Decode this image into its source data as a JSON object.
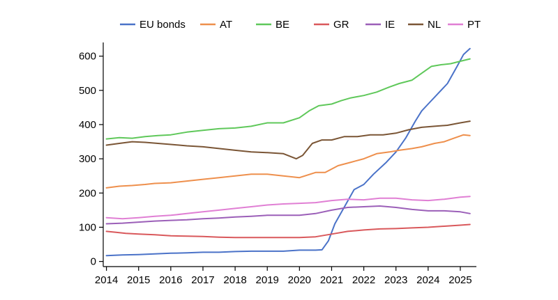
{
  "chart_data": {
    "type": "line",
    "title": "",
    "xlabel": "",
    "ylabel": "",
    "xlim": [
      2013.9,
      2025.5
    ],
    "ylim": [
      -15,
      640
    ],
    "x_ticks": [
      2014,
      2015,
      2016,
      2017,
      2018,
      2019,
      2020,
      2021,
      2022,
      2023,
      2024,
      2025
    ],
    "x_tick_labels": [
      "2014",
      "2015",
      "2016",
      "2017",
      "2018",
      "2019",
      "2020",
      "2021",
      "2022",
      "2023",
      "2024",
      "2025"
    ],
    "y_ticks": [
      0,
      100,
      200,
      300,
      400,
      500,
      600
    ],
    "y_tick_labels": [
      "0",
      "100",
      "200",
      "300",
      "400",
      "500",
      "600"
    ],
    "grid": false,
    "legend_position": "top",
    "series": [
      {
        "name": "EU bonds",
        "color": "#4a72c8",
        "x": [
          2014,
          2014.5,
          2015,
          2015.5,
          2016,
          2016.5,
          2017,
          2017.5,
          2018,
          2018.5,
          2019,
          2019.5,
          2020,
          2020.5,
          2020.7,
          2020.9,
          2021.1,
          2021.4,
          2021.7,
          2022,
          2022.3,
          2022.7,
          2023,
          2023.3,
          2023.6,
          2023.8,
          2024,
          2024.3,
          2024.6,
          2024.9,
          2025.1,
          2025.3
        ],
        "y": [
          17,
          19,
          20,
          22,
          24,
          25,
          27,
          27,
          29,
          30,
          30,
          30,
          33,
          33,
          34,
          60,
          110,
          160,
          210,
          225,
          255,
          290,
          320,
          360,
          410,
          440,
          460,
          490,
          520,
          570,
          605,
          622
        ]
      },
      {
        "name": "AT",
        "color": "#ee8f4c",
        "x": [
          2014,
          2014.4,
          2014.8,
          2015.2,
          2015.5,
          2016,
          2016.5,
          2017,
          2017.5,
          2018,
          2018.5,
          2019,
          2019.5,
          2020,
          2020.5,
          2020.8,
          2021.2,
          2021.6,
          2022,
          2022.4,
          2022.8,
          2023.1,
          2023.5,
          2023.8,
          2024.2,
          2024.5,
          2024.8,
          2025.1,
          2025.3
        ],
        "y": [
          215,
          220,
          222,
          225,
          228,
          230,
          235,
          240,
          245,
          250,
          255,
          255,
          250,
          245,
          260,
          260,
          280,
          290,
          300,
          315,
          320,
          325,
          330,
          335,
          345,
          350,
          360,
          370,
          368
        ]
      },
      {
        "name": "BE",
        "color": "#5fc85a",
        "x": [
          2014,
          2014.4,
          2014.8,
          2015.2,
          2015.6,
          2016,
          2016.5,
          2017,
          2017.5,
          2018,
          2018.5,
          2019,
          2019.5,
          2020,
          2020.3,
          2020.6,
          2021,
          2021.3,
          2021.6,
          2022,
          2022.4,
          2022.8,
          2023.1,
          2023.5,
          2023.8,
          2024.1,
          2024.4,
          2024.7,
          2025,
          2025.3
        ],
        "y": [
          358,
          362,
          360,
          365,
          368,
          370,
          378,
          383,
          388,
          390,
          395,
          405,
          405,
          420,
          440,
          455,
          460,
          470,
          478,
          485,
          495,
          510,
          520,
          530,
          550,
          570,
          575,
          578,
          585,
          592
        ]
      },
      {
        "name": "GR",
        "color": "#d9585b",
        "x": [
          2014,
          2014.3,
          2014.6,
          2015,
          2015.5,
          2016,
          2016.5,
          2017,
          2017.5,
          2018,
          2018.5,
          2019,
          2019.5,
          2020,
          2020.5,
          2021,
          2021.5,
          2022,
          2022.5,
          2023,
          2023.5,
          2024,
          2024.5,
          2025,
          2025.3
        ],
        "y": [
          88,
          85,
          82,
          80,
          78,
          75,
          74,
          73,
          71,
          70,
          70,
          70,
          70,
          70,
          72,
          80,
          88,
          92,
          95,
          96,
          98,
          100,
          103,
          106,
          108
        ]
      },
      {
        "name": "IE",
        "color": "#9b5fb8",
        "x": [
          2014,
          2014.5,
          2015,
          2015.5,
          2016,
          2016.5,
          2017,
          2017.5,
          2018,
          2018.5,
          2019,
          2019.5,
          2020,
          2020.5,
          2021,
          2021.5,
          2022,
          2022.5,
          2023,
          2023.5,
          2024,
          2024.5,
          2025,
          2025.3
        ],
        "y": [
          110,
          112,
          115,
          118,
          120,
          122,
          125,
          127,
          130,
          132,
          135,
          135,
          135,
          140,
          150,
          158,
          160,
          162,
          158,
          152,
          148,
          148,
          145,
          140
        ]
      },
      {
        "name": "NL",
        "color": "#7a5535",
        "x": [
          2014,
          2014.4,
          2014.8,
          2015.2,
          2015.6,
          2016,
          2016.5,
          2017,
          2017.5,
          2018,
          2018.5,
          2019,
          2019.5,
          2019.9,
          2020.1,
          2020.4,
          2020.7,
          2021,
          2021.4,
          2021.8,
          2022.2,
          2022.6,
          2023,
          2023.4,
          2023.8,
          2024.2,
          2024.6,
          2025,
          2025.3
        ],
        "y": [
          340,
          345,
          350,
          348,
          345,
          342,
          338,
          335,
          330,
          325,
          320,
          318,
          315,
          300,
          310,
          345,
          355,
          355,
          365,
          365,
          370,
          370,
          375,
          385,
          392,
          395,
          398,
          405,
          410
        ]
      },
      {
        "name": "PT",
        "color": "#e07fd4",
        "x": [
          2014,
          2014.5,
          2015,
          2015.5,
          2016,
          2016.5,
          2017,
          2017.5,
          2018,
          2018.5,
          2019,
          2019.5,
          2020,
          2020.5,
          2021,
          2021.5,
          2022,
          2022.5,
          2023,
          2023.5,
          2024,
          2024.5,
          2025,
          2025.3
        ],
        "y": [
          128,
          125,
          128,
          132,
          135,
          140,
          145,
          150,
          155,
          160,
          165,
          168,
          170,
          172,
          178,
          182,
          180,
          185,
          185,
          180,
          178,
          182,
          188,
          190
        ]
      }
    ]
  }
}
